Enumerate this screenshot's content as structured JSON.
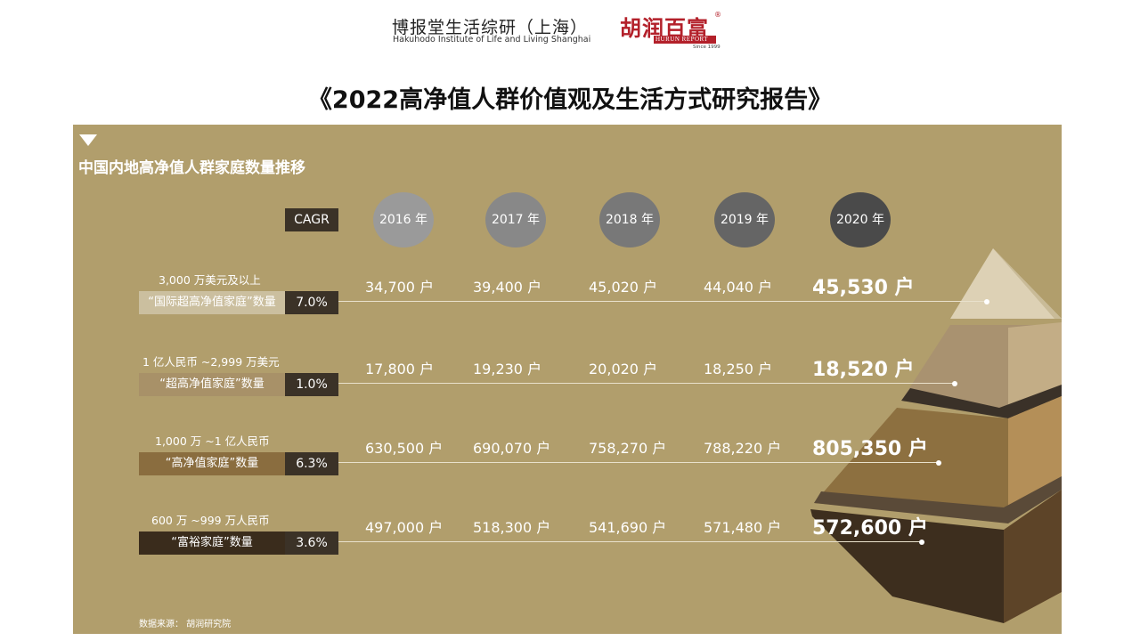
{
  "header": {
    "hakuhodo_cn": "博报堂生活综研（上海）",
    "hakuhodo_en": "Hakuhodo Institute of Life and Living Shanghai",
    "hurun_cn": "胡润百富",
    "hurun_en": "HURUN REPORT",
    "hurun_since": "Since 1999",
    "hurun_reg": "®"
  },
  "report_title": "《2022高净值人群价值观及生活方式研究报告》",
  "panel": {
    "title": "中国内地高净值人群家庭数量推移",
    "cagr_header": "CAGR",
    "source": "数据来源： 胡润研究院",
    "colors": {
      "background": "#b19e6c",
      "dark_box": "#3b3227",
      "year_circles": [
        "#9a9a9a",
        "#888888",
        "#787878",
        "#656565",
        "#4a4a4a"
      ]
    }
  },
  "chart_data": {
    "type": "table",
    "title": "中国内地高净值人群家庭数量推移",
    "columns": [
      "2016 年",
      "2017 年",
      "2018 年",
      "2019 年",
      "2020 年"
    ],
    "unit": "户",
    "rows": [
      {
        "range": "3,000 万美元及以上",
        "category": "“国际超高净值家庭”数量",
        "cagr": "7.0%",
        "values": [
          34700,
          39400,
          45020,
          44040,
          45530
        ],
        "labels": [
          "34,700 户",
          "39,400 户",
          "45,020 户",
          "44,040 户",
          "45,530 户"
        ]
      },
      {
        "range": "1 亿人民币 ~2,999 万美元",
        "category": "“超高净值家庭”数量",
        "cagr": "1.0%",
        "values": [
          17800,
          19230,
          20020,
          18250,
          18520
        ],
        "labels": [
          "17,800 户",
          "19,230 户",
          "20,020 户",
          "18,250 户",
          "18,520 户"
        ]
      },
      {
        "range": "1,000 万 ~1 亿人民币",
        "category": "“高净值家庭”数量",
        "cagr": "6.3%",
        "values": [
          630500,
          690070,
          758270,
          788220,
          805350
        ],
        "labels": [
          "630,500 户",
          "690,070 户",
          "758,270 户",
          "788,220 户",
          "805,350 户"
        ]
      },
      {
        "range": "600 万 ~999 万人民币",
        "category": "“富裕家庭”数量",
        "cagr": "3.6%",
        "values": [
          497000,
          518300,
          541690,
          571480,
          572600
        ],
        "labels": [
          "497,000 户",
          "518,300 户",
          "541,690 户",
          "571,480 户",
          "572,600 户"
        ]
      }
    ],
    "row_colors": [
      "#cbbf9f",
      "#a89168",
      "#8a6d3f",
      "#3a2c1c"
    ]
  }
}
